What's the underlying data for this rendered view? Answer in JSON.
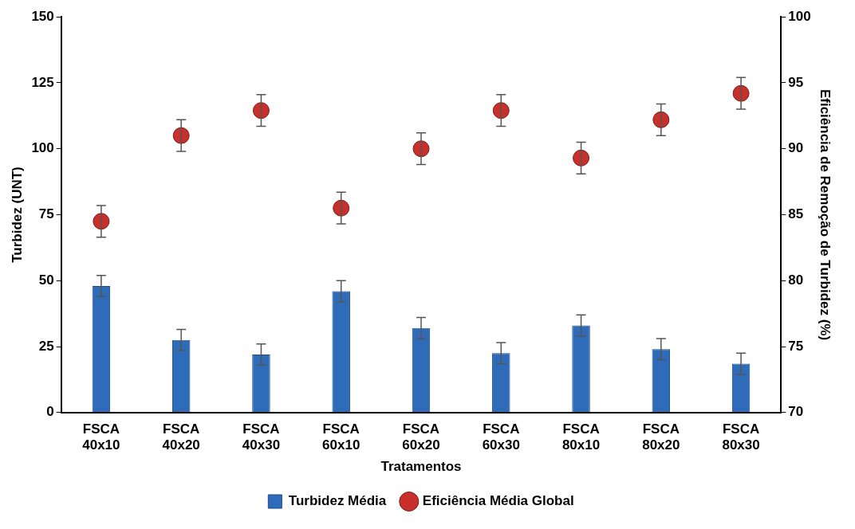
{
  "chart_data": {
    "type": "bar",
    "xlabel": "Tratamentos",
    "ylabel": "Turbidez (UNT)",
    "y2label": "Eficiência de Remoção de Turbidez (%)",
    "categories": [
      "FSCA 40x10",
      "FSCA 40x20",
      "FSCA 40x30",
      "FSCA 60x10",
      "FSCA 60x20",
      "FSCA 60x30",
      "FSCA 80x10",
      "FSCA 80x20",
      "FSCA 80x30"
    ],
    "series": [
      {
        "name": "Turbidez Média",
        "color": "#2e6bb8",
        "values": [
          48,
          27.5,
          22,
          46,
          32,
          22.5,
          33,
          24,
          18.5
        ],
        "errors": [
          4,
          4,
          4,
          4,
          4,
          4,
          4,
          4,
          4
        ]
      },
      {
        "name": "Eficiência Média Global",
        "type": "scatter",
        "axis": "y2",
        "color": "#c8302c",
        "values": [
          84.5,
          91,
          92.9,
          85.5,
          90,
          92.9,
          89.3,
          92.2,
          94.2
        ],
        "errors": [
          1.2,
          1.2,
          1.2,
          1.2,
          1.2,
          1.2,
          1.2,
          1.2,
          1.2
        ]
      }
    ],
    "ylim": [
      0,
      150
    ],
    "yticks": [
      0,
      25,
      50,
      75,
      100,
      125,
      150
    ],
    "y2lim": [
      70,
      100
    ],
    "y2ticks": [
      70,
      75,
      80,
      85,
      90,
      95,
      100
    ],
    "grid": false,
    "legend": "bottom",
    "marker": "circle"
  }
}
